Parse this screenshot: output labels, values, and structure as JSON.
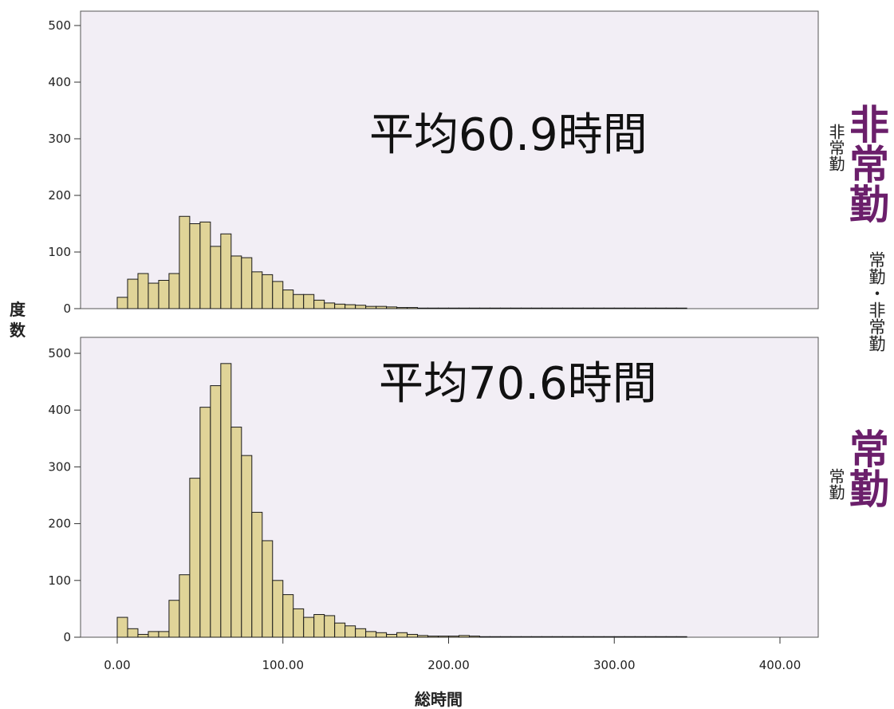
{
  "chart_data": {
    "type": "bar",
    "layout": "two stacked histogram panels sharing the x axis",
    "xlabel": "総時間",
    "ylabel": "度数",
    "xlim": [
      0,
      400
    ],
    "x_ticks": [
      "0.00",
      "100.00",
      "200.00",
      "300.00",
      "400.00"
    ],
    "ylim": [
      0,
      520
    ],
    "y_ticks": [
      "0",
      "100",
      "200",
      "300",
      "400",
      "500"
    ],
    "bin_width": 6.25,
    "grid": false,
    "bar_color": "#e0d498",
    "panel_bg": "#f2eef5",
    "panels": [
      {
        "name": "非常勤",
        "row_label_small": "非常勤",
        "row_label_big": "非常勤",
        "annotation": "平均60.9時間",
        "values": [
          20,
          52,
          62,
          45,
          50,
          62,
          163,
          150,
          153,
          110,
          132,
          93,
          90,
          65,
          60,
          48,
          33,
          25,
          25,
          15,
          10,
          8,
          7,
          6,
          4,
          4,
          3,
          2,
          2,
          1,
          1,
          1,
          1,
          1,
          1,
          1,
          1,
          1,
          1,
          1,
          1,
          1,
          1,
          1,
          1,
          1,
          1,
          1,
          1,
          1,
          1,
          1,
          1,
          1,
          1
        ]
      },
      {
        "name": "常勤",
        "row_label_small": "常勤",
        "row_label_big": "常勤",
        "annotation": "平均70.6時間",
        "values": [
          35,
          15,
          5,
          10,
          10,
          65,
          110,
          280,
          405,
          443,
          482,
          370,
          320,
          220,
          170,
          100,
          75,
          50,
          35,
          40,
          38,
          25,
          20,
          15,
          10,
          8,
          5,
          8,
          5,
          3,
          2,
          2,
          2,
          3,
          2,
          1,
          1,
          1,
          1,
          1,
          1,
          1,
          1,
          1,
          1,
          1,
          1,
          1,
          1,
          1,
          1,
          1,
          1,
          1,
          1
        ]
      }
    ],
    "strip_label": "常勤・非常勤"
  }
}
